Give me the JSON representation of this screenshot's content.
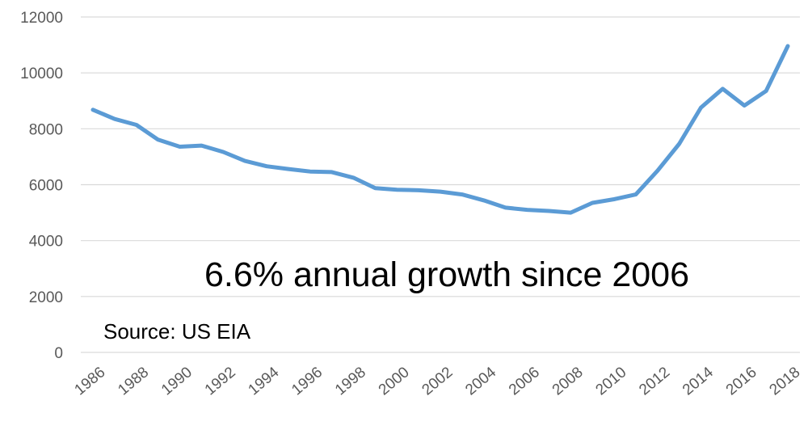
{
  "chart_data": {
    "type": "line",
    "title": "",
    "xlabel": "",
    "ylabel": "",
    "ylim": [
      0,
      12000
    ],
    "yticks": [
      0,
      2000,
      4000,
      6000,
      8000,
      10000,
      12000
    ],
    "xticks": [
      "1986",
      "1988",
      "1990",
      "1992",
      "1994",
      "1996",
      "1998",
      "2000",
      "2002",
      "2004",
      "2006",
      "2008",
      "2010",
      "2012",
      "2014",
      "2016",
      "2018"
    ],
    "grid": true,
    "legend": "none",
    "x": [
      1986,
      1987,
      1988,
      1989,
      1990,
      1991,
      1992,
      1993,
      1994,
      1995,
      1996,
      1997,
      1998,
      1999,
      2000,
      2001,
      2002,
      2003,
      2004,
      2005,
      2006,
      2007,
      2008,
      2009,
      2010,
      2011,
      2012,
      2013,
      2014,
      2015,
      2016,
      2017,
      2018
    ],
    "series": [
      {
        "color": "#5b9bd5",
        "values": [
          8680,
          8350,
          8140,
          7610,
          7360,
          7400,
          7170,
          6850,
          6660,
          6560,
          6470,
          6450,
          6250,
          5880,
          5820,
          5800,
          5750,
          5650,
          5440,
          5180,
          5100,
          5060,
          5000,
          5350,
          5480,
          5650,
          6500,
          7460,
          8760,
          9430,
          8830,
          9350,
          10960
        ]
      }
    ],
    "annotations": [
      {
        "text": "6.6% annual growth since 2006",
        "anchor_x": 2004,
        "anchor_y": 2900,
        "size": "large"
      },
      {
        "text": "Source: US EIA",
        "anchor_x": 1986.5,
        "anchor_y": 750,
        "size": "medium"
      }
    ]
  }
}
